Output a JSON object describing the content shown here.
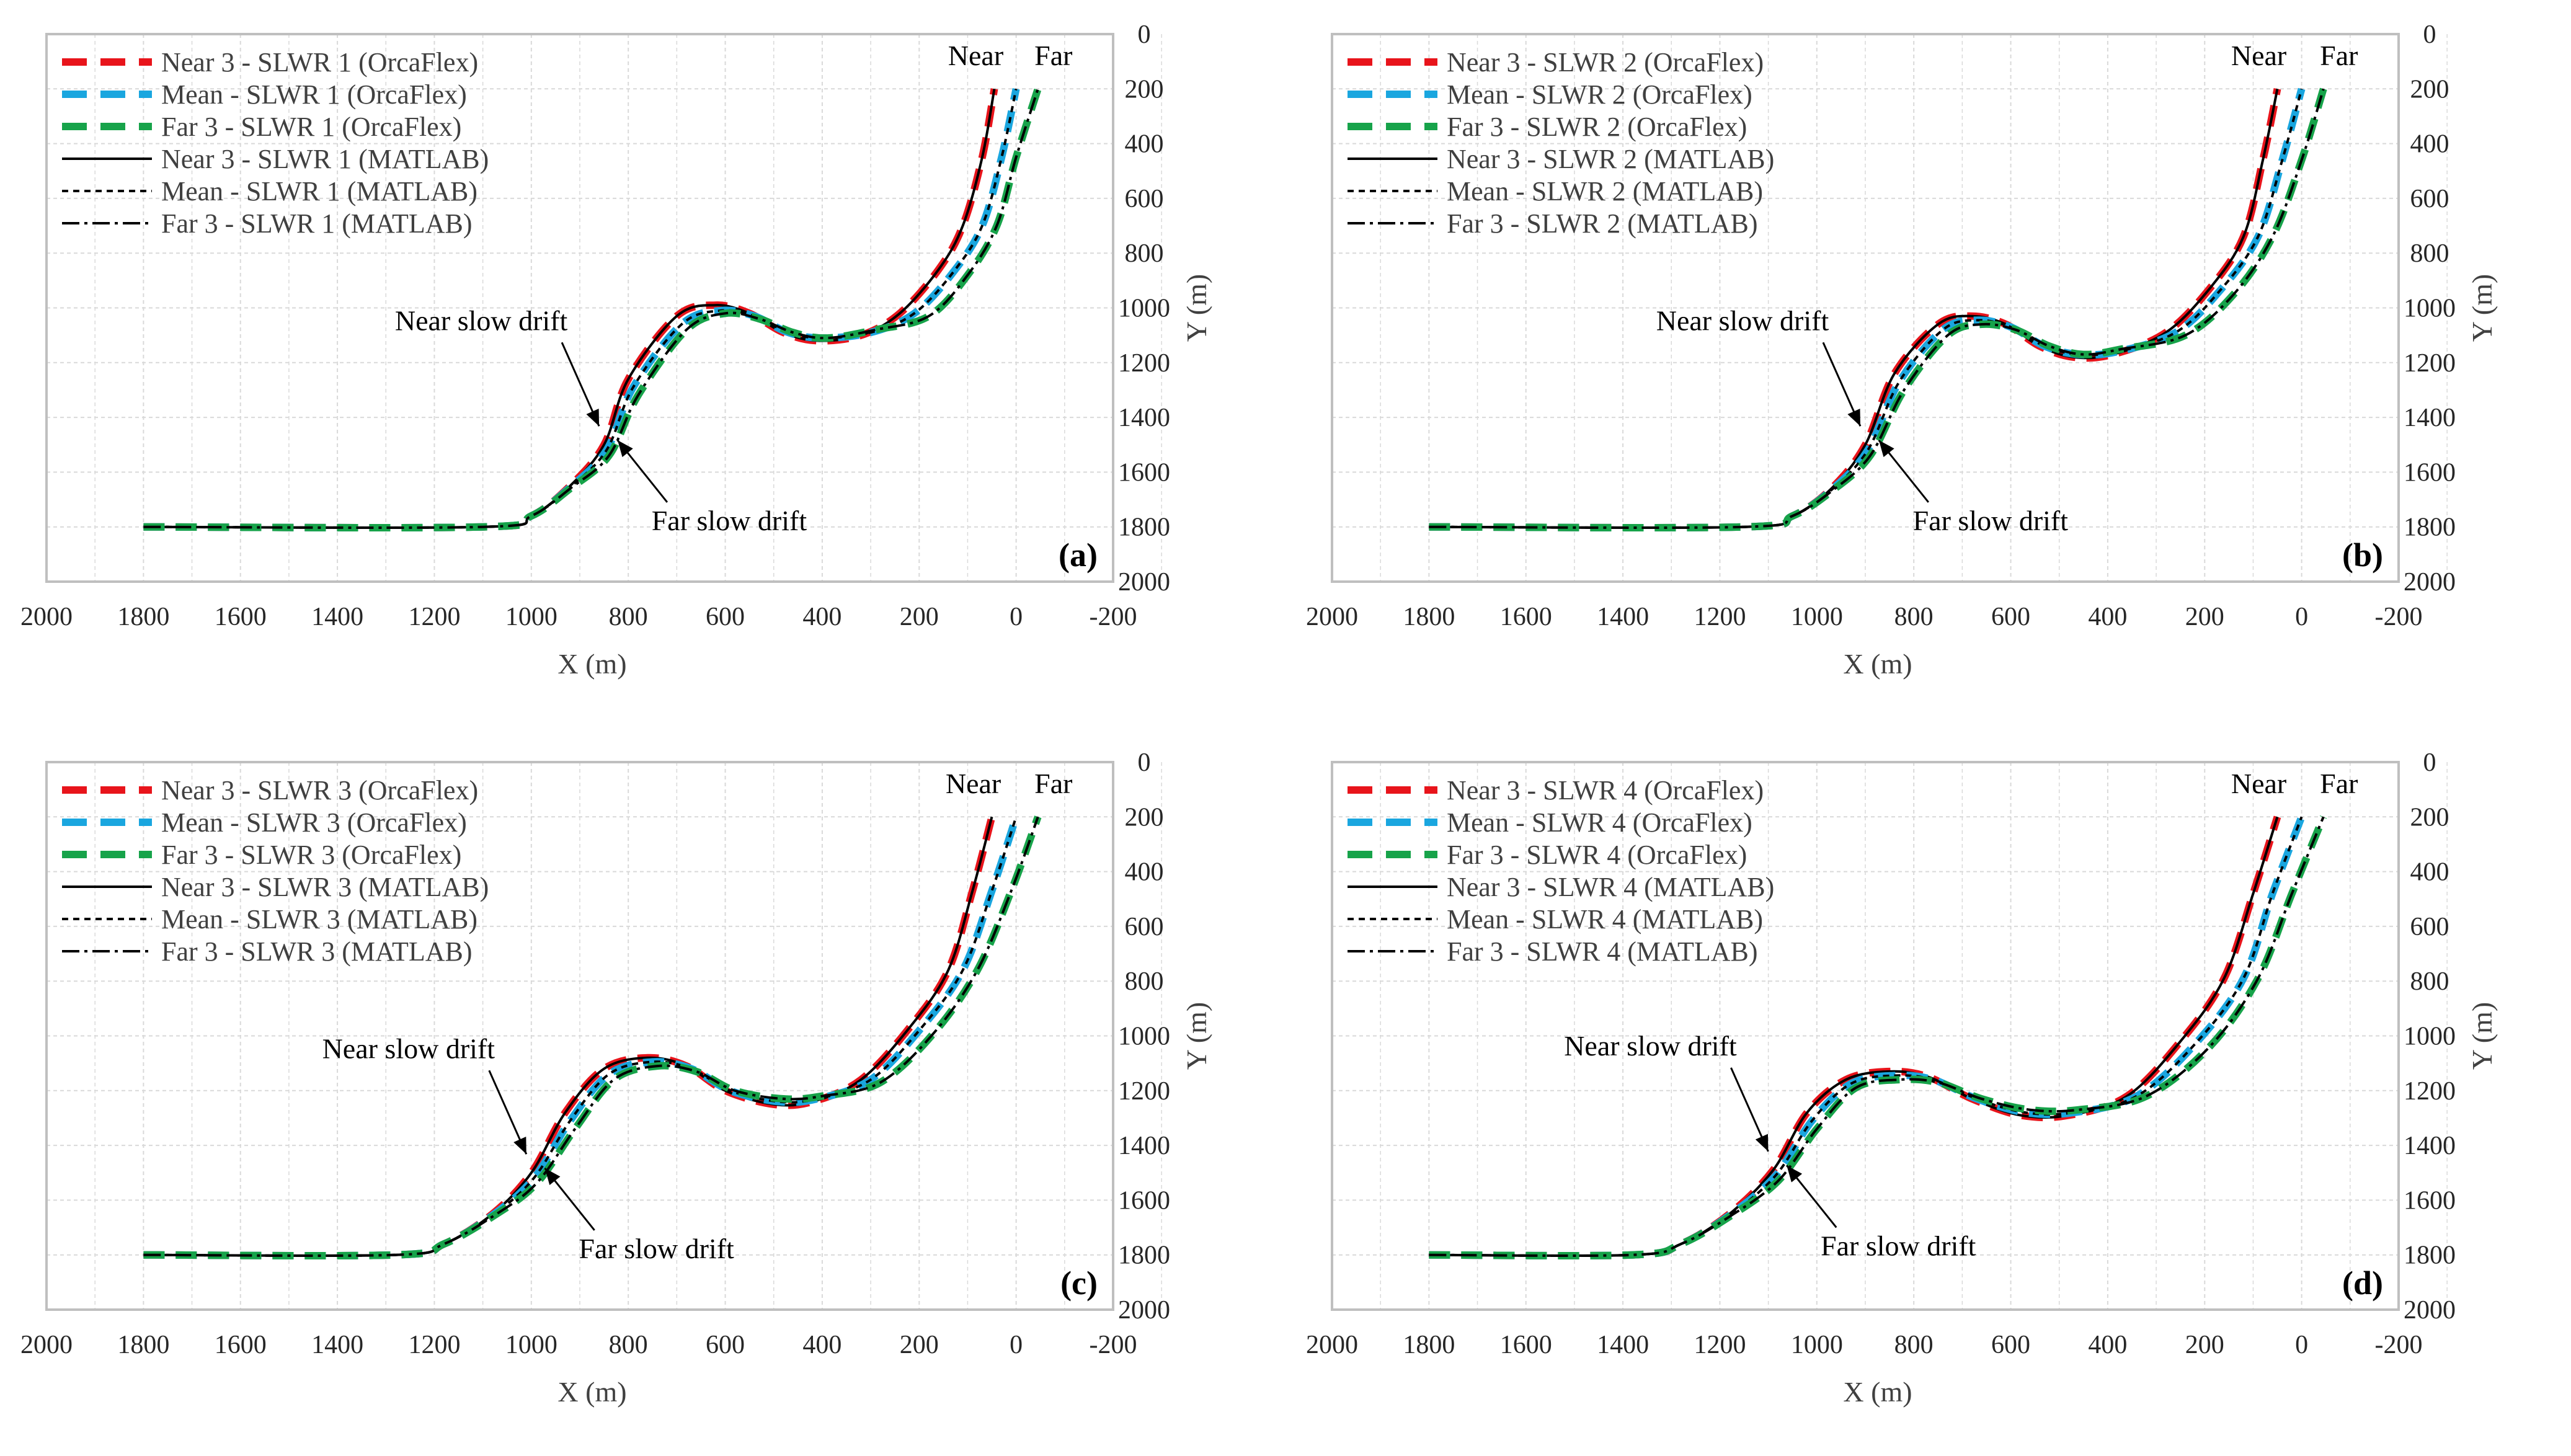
{
  "colors": {
    "near": "#e8141b",
    "mean": "#1aa6df",
    "far": "#17a34a",
    "matlab": "#000000",
    "grid": "#d9d9d9",
    "frame": "#bfbfbf"
  },
  "chart_data": [
    {
      "type": "line",
      "panel_label": "(a)",
      "xlabel": "X (m)",
      "ylabel": "Y (m)",
      "xlim": [
        2000,
        -200
      ],
      "ylim": [
        2000,
        0
      ],
      "xticks": [
        "2000",
        "1800",
        "1600",
        "1400",
        "1200",
        "1000",
        "800",
        "600",
        "400",
        "200",
        "0",
        "-200"
      ],
      "yticks": [
        "0",
        "200",
        "400",
        "600",
        "800",
        "1000",
        "1200",
        "1400",
        "1600",
        "1800",
        "2000"
      ],
      "legend": [
        "Near 3 - SLWR 1 (OrcaFlex)",
        "Mean - SLWR 1 (OrcaFlex)",
        "Far 3 - SLWR 1 (OrcaFlex)",
        "Near 3 - SLWR 1 (MATLAB)",
        "Mean - SLWR 1 (MATLAB)",
        "Far 3 - SLWR 1 (MATLAB)"
      ],
      "annotations": {
        "near_label": "Near",
        "far_label": "Far",
        "near_drift": "Near slow drift",
        "far_drift": "Far slow drift"
      },
      "series": [
        {
          "name": "Near",
          "x": [
            1800,
            1100,
            1000,
            920,
            850,
            800,
            700,
            620,
            550,
            480,
            410,
            320,
            240,
            160,
            110,
            70,
            45
          ],
          "y": [
            1800,
            1800,
            1760,
            1650,
            1500,
            1260,
            1030,
            990,
            1020,
            1090,
            1120,
            1100,
            1020,
            860,
            700,
            450,
            200
          ]
        },
        {
          "name": "Mean",
          "x": [
            1800,
            1100,
            1000,
            920,
            845,
            790,
            690,
            610,
            540,
            470,
            400,
            300,
            210,
            130,
            70,
            30,
            0
          ],
          "y": [
            1800,
            1800,
            1760,
            1655,
            1520,
            1290,
            1060,
            1010,
            1030,
            1090,
            1110,
            1090,
            1020,
            870,
            700,
            450,
            200
          ]
        },
        {
          "name": "Far",
          "x": [
            1800,
            1100,
            1000,
            920,
            840,
            780,
            680,
            600,
            530,
            460,
            390,
            290,
            180,
            100,
            40,
            0,
            -45
          ],
          "y": [
            1800,
            1800,
            1760,
            1660,
            1540,
            1320,
            1080,
            1020,
            1040,
            1090,
            1110,
            1080,
            1030,
            880,
            700,
            450,
            200
          ]
        }
      ]
    },
    {
      "type": "line",
      "panel_label": "(b)",
      "xlabel": "X (m)",
      "ylabel": "Y (m)",
      "xlim": [
        2000,
        -200
      ],
      "ylim": [
        2000,
        0
      ],
      "xticks": [
        "2000",
        "1800",
        "1600",
        "1400",
        "1200",
        "1000",
        "800",
        "600",
        "400",
        "200",
        "0",
        "-200"
      ],
      "yticks": [
        "0",
        "200",
        "400",
        "600",
        "800",
        "1000",
        "1200",
        "1400",
        "1600",
        "1800",
        "2000"
      ],
      "legend": [
        "Near 3 - SLWR 2 (OrcaFlex)",
        "Mean - SLWR 2 (OrcaFlex)",
        "Far 3 - SLWR 2 (OrcaFlex)",
        "Near 3 - SLWR 2 (MATLAB)",
        "Mean - SLWR 2 (MATLAB)",
        "Far 3 - SLWR 2 (MATLAB)"
      ],
      "annotations": {
        "near_label": "Near",
        "far_label": "Far",
        "near_drift": "Near slow drift",
        "far_drift": "Far slow drift"
      },
      "series": [
        {
          "name": "Near",
          "x": [
            1800,
            1150,
            1050,
            970,
            900,
            840,
            750,
            680,
            610,
            540,
            470,
            390,
            280,
            190,
            120,
            80,
            50
          ],
          "y": [
            1800,
            1800,
            1760,
            1660,
            1500,
            1240,
            1060,
            1030,
            1060,
            1140,
            1180,
            1170,
            1090,
            930,
            740,
            460,
            200
          ]
        },
        {
          "name": "Mean",
          "x": [
            1800,
            1150,
            1050,
            970,
            895,
            830,
            740,
            670,
            600,
            530,
            460,
            380,
            260,
            170,
            90,
            40,
            0
          ],
          "y": [
            1800,
            1800,
            1760,
            1665,
            1520,
            1270,
            1080,
            1045,
            1070,
            1140,
            1170,
            1160,
            1090,
            940,
            740,
            460,
            200
          ]
        },
        {
          "name": "Far",
          "x": [
            1800,
            1150,
            1050,
            970,
            890,
            820,
            730,
            660,
            590,
            520,
            450,
            370,
            240,
            140,
            60,
            0,
            -45
          ],
          "y": [
            1800,
            1800,
            1760,
            1670,
            1540,
            1300,
            1100,
            1060,
            1080,
            1140,
            1170,
            1150,
            1100,
            950,
            740,
            460,
            200
          ]
        }
      ]
    },
    {
      "type": "line",
      "panel_label": "(c)",
      "xlabel": "X (m)",
      "ylabel": "Y (m)",
      "xlim": [
        2000,
        -200
      ],
      "ylim": [
        2000,
        0
      ],
      "xticks": [
        "2000",
        "1800",
        "1600",
        "1400",
        "1200",
        "1000",
        "800",
        "600",
        "400",
        "200",
        "0",
        "-200"
      ],
      "yticks": [
        "0",
        "200",
        "400",
        "600",
        "800",
        "1000",
        "1200",
        "1400",
        "1600",
        "1800",
        "2000"
      ],
      "legend": [
        "Near 3 - SLWR 3 (OrcaFlex)",
        "Mean - SLWR 3 (OrcaFlex)",
        "Far 3 - SLWR 3 (OrcaFlex)",
        "Near 3 - SLWR 3 (MATLAB)",
        "Mean - SLWR 3 (MATLAB)",
        "Far 3 - SLWR 3 (MATLAB)"
      ],
      "annotations": {
        "near_label": "Near",
        "far_label": "Far",
        "near_drift": "Near slow drift",
        "far_drift": "Far slow drift"
      },
      "series": [
        {
          "name": "Near",
          "x": [
            1800,
            1280,
            1180,
            1080,
            1000,
            930,
            850,
            760,
            680,
            600,
            500,
            420,
            320,
            220,
            140,
            90,
            50
          ],
          "y": [
            1800,
            1800,
            1760,
            1650,
            1500,
            1280,
            1120,
            1080,
            1110,
            1200,
            1250,
            1240,
            1160,
            970,
            760,
            470,
            200
          ]
        },
        {
          "name": "Mean",
          "x": [
            1800,
            1280,
            1180,
            1080,
            995,
            920,
            840,
            750,
            670,
            590,
            490,
            410,
            300,
            200,
            110,
            50,
            0
          ],
          "y": [
            1800,
            1800,
            1760,
            1655,
            1520,
            1310,
            1140,
            1095,
            1120,
            1200,
            1240,
            1230,
            1160,
            980,
            760,
            470,
            200
          ]
        },
        {
          "name": "Far",
          "x": [
            1800,
            1280,
            1180,
            1080,
            990,
            910,
            830,
            740,
            660,
            580,
            480,
            400,
            280,
            170,
            80,
            10,
            -45
          ],
          "y": [
            1800,
            1800,
            1760,
            1660,
            1540,
            1340,
            1160,
            1110,
            1130,
            1200,
            1230,
            1220,
            1170,
            990,
            760,
            470,
            200
          ]
        }
      ]
    },
    {
      "type": "line",
      "panel_label": "(d)",
      "xlabel": "X (m)",
      "ylabel": "Y (m)",
      "xlim": [
        2000,
        -200
      ],
      "ylim": [
        2000,
        0
      ],
      "xticks": [
        "2000",
        "1800",
        "1600",
        "1400",
        "1200",
        "1000",
        "800",
        "600",
        "400",
        "200",
        "0",
        "-200"
      ],
      "yticks": [
        "0",
        "200",
        "400",
        "600",
        "800",
        "1000",
        "1200",
        "1400",
        "1600",
        "1800",
        "2000"
      ],
      "legend": [
        "Near 3 - SLWR 4 (OrcaFlex)",
        "Mean - SLWR 4 (OrcaFlex)",
        "Far 3 - SLWR 4 (OrcaFlex)",
        "Near 3 - SLWR 4 (MATLAB)",
        "Mean - SLWR 4 (MATLAB)",
        "Far 3 - SLWR 4 (MATLAB)"
      ],
      "annotations": {
        "near_label": "Near",
        "far_label": "Far",
        "near_drift": "Near slow drift",
        "far_drift": "Far slow drift"
      },
      "series": [
        {
          "name": "Near",
          "x": [
            1800,
            1380,
            1280,
            1180,
            1090,
            1020,
            940,
            850,
            770,
            680,
            580,
            480,
            360,
            250,
            160,
            100,
            50
          ],
          "y": [
            1800,
            1800,
            1760,
            1650,
            1490,
            1280,
            1160,
            1130,
            1150,
            1230,
            1290,
            1290,
            1220,
            1020,
            790,
            480,
            200
          ]
        },
        {
          "name": "Mean",
          "x": [
            1800,
            1380,
            1280,
            1180,
            1085,
            1010,
            930,
            840,
            760,
            670,
            570,
            470,
            340,
            220,
            120,
            60,
            0
          ],
          "y": [
            1800,
            1800,
            1760,
            1655,
            1510,
            1310,
            1175,
            1145,
            1160,
            1230,
            1280,
            1280,
            1220,
            1030,
            790,
            480,
            200
          ]
        },
        {
          "name": "Far",
          "x": [
            1800,
            1380,
            1280,
            1180,
            1080,
            1000,
            920,
            830,
            750,
            660,
            560,
            460,
            320,
            190,
            90,
            20,
            -45
          ],
          "y": [
            1800,
            1800,
            1760,
            1660,
            1530,
            1340,
            1190,
            1160,
            1170,
            1230,
            1270,
            1270,
            1220,
            1040,
            790,
            480,
            200
          ]
        }
      ]
    }
  ]
}
